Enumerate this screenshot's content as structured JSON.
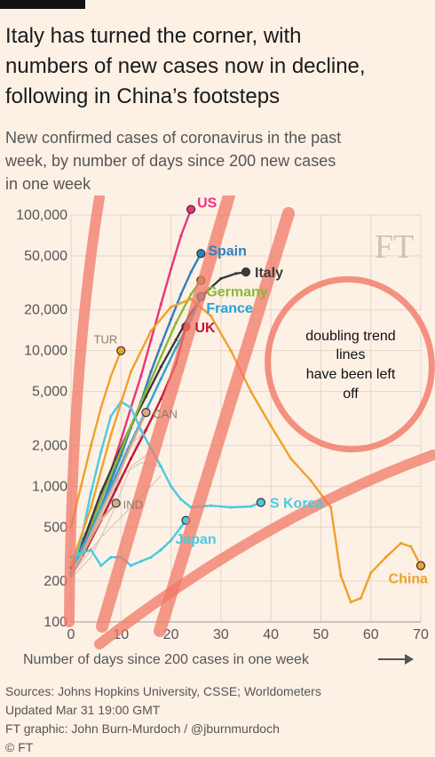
{
  "page": {
    "title_lines": [
      "Italy has turned the corner, with",
      "numbers of new cases now in decline,",
      "following in China’s footsteps"
    ],
    "subtitle_lines": [
      "New confirmed cases of coronavirus in the past",
      "week, by number of days since 200 new cases",
      "in one week"
    ],
    "logo": "FT",
    "annotation_lines": [
      "doubling trend",
      "lines",
      "have been left",
      "off"
    ],
    "footer": [
      "Sources: Johns Hopkins University, CSSE; Worldometers",
      "Updated Mar 31 19:00 GMT",
      "FT graphic: John Burn-Murdoch / @jburnmurdoch",
      "© FT"
    ]
  },
  "chart_data": {
    "type": "line",
    "title": "Italy has turned the corner, with numbers of new cases now in decline, following in China’s footsteps",
    "subtitle": "New confirmed cases of coronavirus in the past week, by number of days since 200 new cases in one week",
    "xlabel": "Number of days since 200 cases in one week",
    "ylabel": "",
    "y_scale": "log",
    "xlim": [
      0,
      70
    ],
    "ylim": [
      100,
      100000
    ],
    "x_ticks": [
      0,
      10,
      20,
      30,
      40,
      50,
      60,
      70
    ],
    "y_ticks": [
      100,
      200,
      500,
      1000,
      2000,
      5000,
      10000,
      20000,
      50000,
      100000
    ],
    "y_tick_labels": [
      "100",
      "200",
      "500",
      "1,000",
      "2,000",
      "5,000",
      "10,000",
      "20,000",
      "50,000",
      "100,000"
    ],
    "grid": true,
    "series": [
      {
        "name": "US",
        "color": "#e8347c",
        "x": [
          0,
          2,
          4,
          6,
          8,
          10,
          12,
          14,
          16,
          18,
          20,
          22,
          24
        ],
        "y": [
          230,
          330,
          520,
          800,
          1300,
          2200,
          3800,
          6500,
          12000,
          22000,
          40000,
          70000,
          110000
        ]
      },
      {
        "name": "Spain",
        "color": "#2f7fc1",
        "x": [
          0,
          2,
          4,
          6,
          8,
          10,
          12,
          14,
          16,
          18,
          20,
          22,
          24,
          26
        ],
        "y": [
          220,
          320,
          450,
          700,
          1100,
          1700,
          2700,
          4200,
          7000,
          11000,
          17000,
          26000,
          38000,
          52000
        ]
      },
      {
        "name": "Italy",
        "color": "#3a3a3a",
        "x": [
          0,
          3,
          6,
          9,
          12,
          15,
          18,
          21,
          24,
          27,
          30,
          33,
          35
        ],
        "y": [
          250,
          450,
          900,
          1600,
          2800,
          4600,
          7600,
          12000,
          19000,
          27000,
          34000,
          37000,
          38000
        ]
      },
      {
        "name": "Germany",
        "color": "#8ab933",
        "x": [
          0,
          3,
          6,
          9,
          12,
          15,
          18,
          21,
          24,
          26
        ],
        "y": [
          220,
          400,
          800,
          1500,
          2800,
          5000,
          9000,
          16000,
          26000,
          33000
        ]
      },
      {
        "name": "France",
        "color": "#29a3d6",
        "x": [
          0,
          3,
          6,
          9,
          12,
          15,
          18,
          21,
          24,
          26
        ],
        "y": [
          230,
          400,
          700,
          1200,
          2100,
          3600,
          6200,
          10500,
          17000,
          25000
        ]
      },
      {
        "name": "UK",
        "color": "#c4173b",
        "x": [
          0,
          3,
          6,
          9,
          12,
          15,
          18,
          21,
          23
        ],
        "y": [
          220,
          340,
          560,
          950,
          1600,
          2600,
          4400,
          8000,
          15000
        ]
      },
      {
        "name": "TUR",
        "color": "#f0a12b",
        "x": [
          0,
          2,
          4,
          6,
          8,
          10
        ],
        "y": [
          500,
          1000,
          2000,
          3800,
          6500,
          10000
        ]
      },
      {
        "name": "CAN",
        "color": "#d9a88a",
        "x": [
          0,
          3,
          6,
          9,
          12,
          15
        ],
        "y": [
          220,
          370,
          650,
          1100,
          2000,
          3500
        ]
      },
      {
        "name": "IND",
        "color": "#d9a88a",
        "x": [
          0,
          2,
          4,
          6,
          9
        ],
        "y": [
          220,
          300,
          420,
          570,
          750
        ]
      },
      {
        "name": "Japan",
        "color": "#4cc9e0",
        "x": [
          0,
          2,
          4,
          6,
          8,
          10,
          12,
          14,
          16,
          18,
          20,
          22,
          23
        ],
        "y": [
          300,
          320,
          340,
          260,
          300,
          300,
          260,
          280,
          300,
          340,
          400,
          500,
          560
        ]
      },
      {
        "name": "S Korea",
        "color": "#4cc9e0",
        "x": [
          0,
          2,
          4,
          6,
          8,
          10,
          12,
          14,
          16,
          18,
          20,
          22,
          24,
          28,
          32,
          36,
          38
        ],
        "y": [
          220,
          400,
          900,
          1800,
          3300,
          4200,
          3800,
          2600,
          1900,
          1400,
          1000,
          800,
          700,
          720,
          700,
          710,
          760
        ]
      },
      {
        "name": "China",
        "color": "#f0a12b",
        "x": [
          0,
          4,
          8,
          12,
          16,
          20,
          24,
          28,
          32,
          36,
          40,
          44,
          48,
          52,
          54,
          56,
          58,
          60,
          63,
          66,
          68,
          70
        ],
        "y": [
          260,
          700,
          2400,
          7000,
          14000,
          21000,
          24000,
          18000,
          10000,
          5000,
          2800,
          1600,
          1100,
          700,
          220,
          140,
          150,
          230,
          300,
          380,
          360,
          260
        ]
      }
    ],
    "labels": [
      {
        "text": "US",
        "series": "US"
      },
      {
        "text": "Spain",
        "series": "Spain"
      },
      {
        "text": "Italy",
        "series": "Italy"
      },
      {
        "text": "Germany",
        "series": "Germany"
      },
      {
        "text": "France",
        "series": "France"
      },
      {
        "text": "UK",
        "series": "UK"
      },
      {
        "text": "TUR",
        "series": "TUR"
      },
      {
        "text": "CAN",
        "series": "CAN"
      },
      {
        "text": "IND",
        "series": "IND"
      },
      {
        "text": "Japan",
        "series": "Japan"
      },
      {
        "text": "S Korea",
        "series": "S Korea"
      },
      {
        "text": "China",
        "series": "China"
      }
    ]
  }
}
